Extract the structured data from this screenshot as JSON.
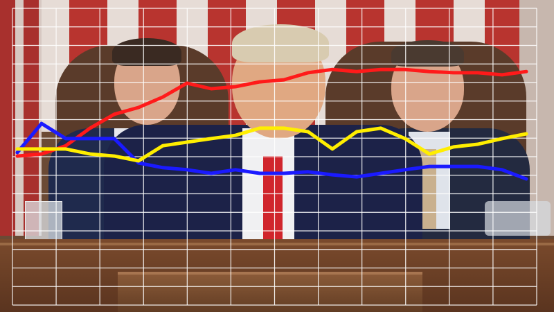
{
  "chart_data": {
    "type": "line",
    "title": "",
    "xlabel": "",
    "ylabel": "",
    "x": [
      0,
      1,
      2,
      3,
      4,
      5,
      6,
      7,
      8,
      9,
      10,
      11,
      12,
      13,
      14,
      15,
      16,
      17,
      18,
      19,
      20,
      21
    ],
    "ylim": [
      0,
      100
    ],
    "grid": true,
    "legend": "none",
    "series": [
      {
        "color": "#ff1a1a",
        "values": [
          50.2,
          50.9,
          53.7,
          59.6,
          64.3,
          66.6,
          70.1,
          74.8,
          72.9,
          73.6,
          75.2,
          75.9,
          78.3,
          79.4,
          78.7,
          79.4,
          79.4,
          78.7,
          78.3,
          78.3,
          77.6,
          78.7
        ]
      },
      {
        "color": "#1a1aff",
        "values": [
          51.4,
          61.2,
          56.1,
          56.1,
          56.1,
          47.9,
          46.3,
          45.6,
          44.4,
          45.6,
          44.4,
          44.4,
          44.9,
          43.9,
          43.2,
          44.4,
          45.6,
          46.7,
          46.7,
          46.7,
          45.6,
          42.5
        ]
      },
      {
        "color": "#ffee00",
        "values": [
          52.6,
          52.6,
          52.6,
          50.9,
          50.2,
          48.6,
          53.7,
          54.9,
          56.1,
          57.2,
          59.6,
          59.6,
          58.4,
          52.6,
          58.4,
          59.6,
          56.1,
          50.9,
          53.3,
          54.2,
          56.1,
          57.7
        ]
      }
    ]
  }
}
